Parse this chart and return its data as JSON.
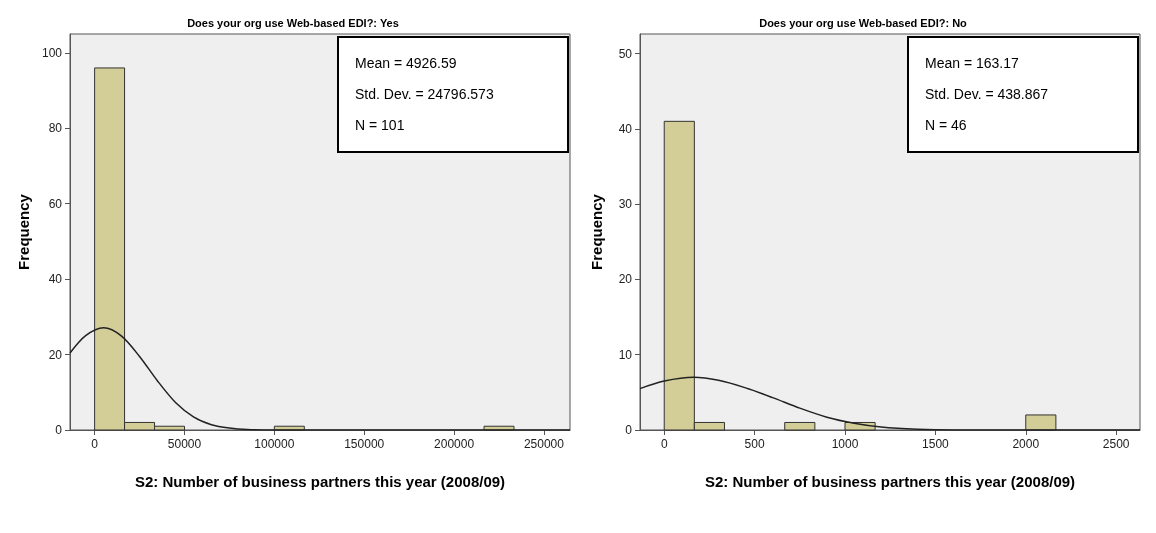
{
  "chart_data": [
    {
      "type": "histogram",
      "title": "Does your org use Web-based EDI?: Yes",
      "xlabel": "S2: Number of business partners this year (2008/09)",
      "ylabel": "Frequency",
      "bins": [
        0,
        16667,
        33333,
        50000,
        66667,
        83333,
        100000,
        116667,
        133333,
        150000,
        166667,
        183333,
        200000,
        216667,
        233333
      ],
      "values": [
        96,
        2,
        1,
        0,
        0,
        0,
        1,
        0,
        0,
        0,
        0,
        0,
        0,
        1
      ],
      "color": "#d3ce97",
      "series": [
        {
          "type": "line",
          "color": "#222222",
          "x": [
            -13700,
            -5000,
            5000,
            15000,
            25000,
            35000,
            45000,
            55000,
            65000,
            75000,
            85000,
            100000,
            150000,
            200000,
            264500
          ],
          "values": [
            20.4,
            25.0,
            27.1,
            24.9,
            19.5,
            13.0,
            7.3,
            3.5,
            1.4,
            0.5,
            0.1,
            0,
            0,
            0,
            0
          ]
        }
      ],
      "annotations": [
        "Mean = 4926.59",
        "Std. Dev. = 24796.573",
        "N = 101"
      ],
      "xlim": [
        -13700,
        264500
      ],
      "xticks": [
        0,
        50000,
        100000,
        150000,
        200000,
        250000
      ],
      "ylim": [
        0,
        105
      ],
      "yticks": [
        0,
        20,
        40,
        60,
        80,
        100
      ],
      "grid": false,
      "marker": "none"
    },
    {
      "type": "histogram",
      "title": "Does your org use Web-based EDI?: No",
      "xlabel": "S2: Number of business partners this year (2008/09)",
      "ylabel": "Frequency",
      "bins": [
        0,
        166.67,
        333.33,
        500,
        666.67,
        833.33,
        1000,
        1166.67,
        1333.33,
        1500,
        1666.67,
        1833.33,
        2000,
        2166.67
      ],
      "values": [
        41,
        1,
        0,
        0,
        1,
        0,
        1,
        0,
        0,
        0,
        0,
        0,
        2
      ],
      "color": "#d3ce97",
      "series": [
        {
          "type": "line",
          "color": "#222222",
          "x": [
            -134,
            0,
            163,
            300,
            450,
            600,
            750,
            900,
            1050,
            1200,
            1400,
            1600,
            2000,
            2632
          ],
          "values": [
            5.5,
            6.5,
            7.0,
            6.6,
            5.6,
            4.3,
            2.9,
            1.7,
            0.9,
            0.4,
            0.1,
            0,
            0,
            0
          ]
        }
      ],
      "annotations": [
        "Mean = 163.17",
        "Std. Dev. = 438.867",
        "N = 46"
      ],
      "xlim": [
        -134,
        2632
      ],
      "xticks": [
        0,
        500,
        1000,
        1500,
        2000,
        2500
      ],
      "ylim": [
        0,
        52.6
      ],
      "yticks": [
        0,
        10,
        20,
        30,
        40,
        50
      ],
      "grid": false,
      "marker": "none"
    }
  ]
}
